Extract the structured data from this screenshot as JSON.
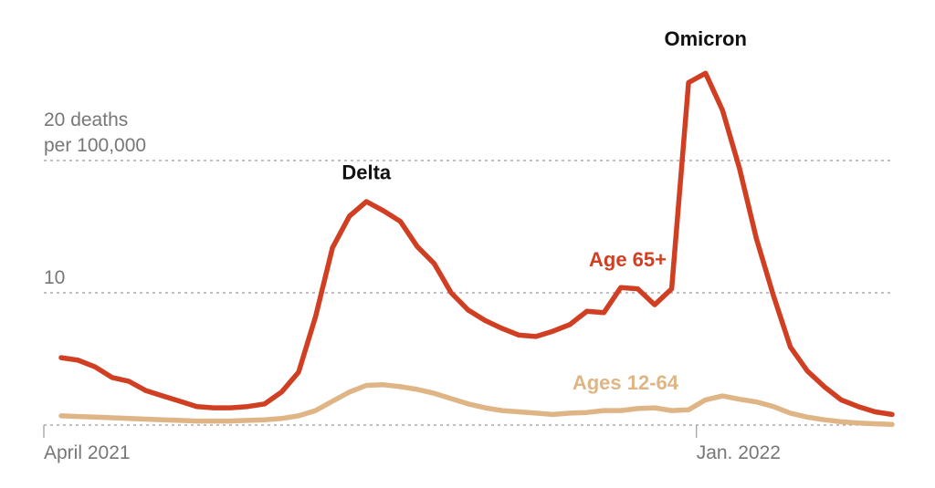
{
  "chart_data": {
    "type": "line",
    "title": "",
    "ylabel": "deaths per 100,000",
    "ylim": [
      0,
      25
    ],
    "y_ticks": [
      {
        "value": 10,
        "lines": [
          "10"
        ]
      },
      {
        "value": 20,
        "lines": [
          "20 deaths",
          "per 100,000"
        ]
      }
    ],
    "x_ticks": [
      {
        "week": 0,
        "label": "April 2021"
      },
      {
        "week": 38,
        "label": "Jan. 2022"
      }
    ],
    "x_range": [
      0,
      52
    ],
    "series": [
      {
        "name": "Age 65+",
        "color": "#d13f23",
        "values": [
          5.1,
          4.9,
          4.4,
          3.6,
          3.3,
          2.6,
          2.2,
          1.8,
          1.4,
          1.3,
          1.3,
          1.4,
          1.6,
          2.5,
          4.0,
          8.2,
          13.4,
          15.8,
          16.9,
          16.2,
          15.4,
          13.5,
          12.2,
          10.0,
          8.7,
          7.9,
          7.3,
          6.8,
          6.7,
          7.1,
          7.6,
          8.6,
          8.5,
          10.4,
          10.3,
          9.1,
          10.3,
          25.9,
          26.6,
          23.8,
          19.4,
          14.1,
          9.8,
          5.9,
          4.1,
          2.9,
          1.9,
          1.4,
          1.0,
          0.8
        ]
      },
      {
        "name": "Ages 12-64",
        "color": "#e0b585",
        "values": [
          0.7,
          0.65,
          0.6,
          0.55,
          0.5,
          0.45,
          0.4,
          0.35,
          0.3,
          0.3,
          0.3,
          0.35,
          0.4,
          0.5,
          0.7,
          1.1,
          1.8,
          2.5,
          3.0,
          3.05,
          2.9,
          2.7,
          2.4,
          2.0,
          1.6,
          1.3,
          1.1,
          1.0,
          0.9,
          0.8,
          0.9,
          0.95,
          1.1,
          1.1,
          1.25,
          1.3,
          1.1,
          1.15,
          1.9,
          2.2,
          1.95,
          1.75,
          1.4,
          0.9,
          0.6,
          0.4,
          0.25,
          0.15,
          0.1,
          0.05
        ]
      }
    ],
    "annotations": [
      {
        "text": "Delta",
        "week": 18,
        "value": 18.6,
        "color": "#111111",
        "anchor": "middle"
      },
      {
        "text": "Omicron",
        "week": 38,
        "value": 28.7,
        "color": "#111111",
        "anchor": "middle"
      },
      {
        "text": "Age 65+",
        "week": 35.7,
        "value": 12.0,
        "color": "#d13f23",
        "anchor": "end"
      },
      {
        "text": "Ages 12-64",
        "week": 36.4,
        "value": 2.7,
        "color": "#e0b585",
        "anchor": "end"
      }
    ]
  }
}
